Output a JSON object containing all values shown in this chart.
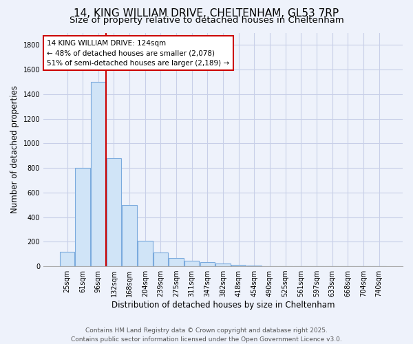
{
  "title_line1": "14, KING WILLIAM DRIVE, CHELTENHAM, GL53 7RP",
  "title_line2": "Size of property relative to detached houses in Cheltenham",
  "xlabel": "Distribution of detached houses by size in Cheltenham",
  "ylabel": "Number of detached properties",
  "categories": [
    "25sqm",
    "61sqm",
    "96sqm",
    "132sqm",
    "168sqm",
    "204sqm",
    "239sqm",
    "275sqm",
    "311sqm",
    "347sqm",
    "382sqm",
    "418sqm",
    "454sqm",
    "490sqm",
    "525sqm",
    "561sqm",
    "597sqm",
    "633sqm",
    "668sqm",
    "704sqm",
    "740sqm"
  ],
  "values": [
    120,
    800,
    1500,
    880,
    500,
    210,
    110,
    65,
    45,
    35,
    25,
    10,
    5,
    3,
    2,
    1,
    1,
    0,
    0,
    0,
    0
  ],
  "bar_color": "#d0e4f7",
  "bar_edge_color": "#7aaadd",
  "red_line_bin_index": 2,
  "annotation_line1": "14 KING WILLIAM DRIVE: 124sqm",
  "annotation_line2": "← 48% of detached houses are smaller (2,078)",
  "annotation_line3": "51% of semi-detached houses are larger (2,189) →",
  "annotation_box_color": "#ffffff",
  "annotation_box_edgecolor": "#cc0000",
  "ylim_max": 1900,
  "yticks": [
    0,
    200,
    400,
    600,
    800,
    1000,
    1200,
    1400,
    1600,
    1800
  ],
  "footer_line1": "Contains HM Land Registry data © Crown copyright and database right 2025.",
  "footer_line2": "Contains public sector information licensed under the Open Government Licence v3.0.",
  "background_color": "#eef2fb",
  "grid_color": "#c8cfe8",
  "title_fontsize": 11,
  "subtitle_fontsize": 9.5,
  "axis_label_fontsize": 8.5,
  "tick_fontsize": 7,
  "annotation_fontsize": 7.5,
  "footer_fontsize": 6.5
}
